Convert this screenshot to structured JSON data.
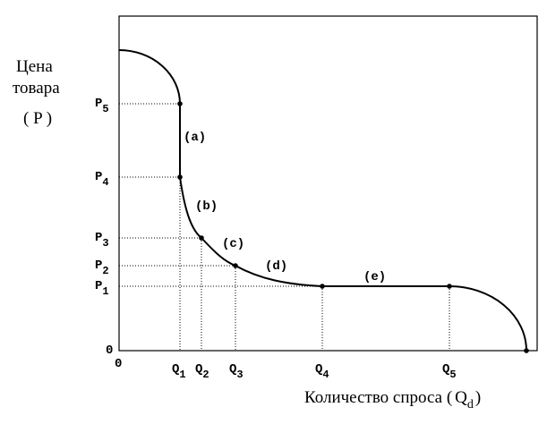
{
  "y_axis_label": [
    "Цена",
    "товара",
    "( P )"
  ],
  "x_axis_label": {
    "text": "Количество спроса",
    "open": "(",
    "symbol": "Q",
    "sub": "d",
    "close": ")"
  },
  "y_ticks": [
    {
      "base": "P",
      "sub": "5"
    },
    {
      "base": "P",
      "sub": "4"
    },
    {
      "base": "P",
      "sub": "3"
    },
    {
      "base": "P",
      "sub": "2"
    },
    {
      "base": "P",
      "sub": "1"
    },
    {
      "base": "0"
    }
  ],
  "x_ticks": [
    {
      "base": "0"
    },
    {
      "base": "Q",
      "sub": "1"
    },
    {
      "base": "Q",
      "sub": "2"
    },
    {
      "base": "Q",
      "sub": "3"
    },
    {
      "base": "Q",
      "sub": "4"
    },
    {
      "base": "Q",
      "sub": "5"
    }
  ],
  "segments": [
    "(a)",
    "(b)",
    "(c)",
    "(d)",
    "(e)"
  ]
}
